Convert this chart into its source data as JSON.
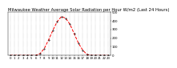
{
  "title": "Milwaukee Weather Average Solar Radiation per Hour W/m2 (Last 24 Hours)",
  "x_hours": [
    0,
    1,
    2,
    3,
    4,
    5,
    6,
    7,
    8,
    9,
    10,
    11,
    12,
    13,
    14,
    15,
    16,
    17,
    18,
    19,
    20,
    21,
    22,
    23
  ],
  "y_values": [
    0,
    0,
    0,
    0,
    0,
    0,
    0,
    20,
    80,
    180,
    290,
    390,
    450,
    430,
    360,
    250,
    140,
    60,
    10,
    0,
    0,
    0,
    0,
    0
  ],
  "line_color": "#ff0000",
  "line_style": "--",
  "marker": ".",
  "marker_color": "#000000",
  "bg_color": "#ffffff",
  "grid_color": "#888888",
  "ylim": [
    0,
    500
  ],
  "xlim": [
    -0.5,
    23.5
  ],
  "yticks": [
    0,
    100,
    200,
    300,
    400,
    500
  ],
  "title_fontsize": 3.8,
  "tick_fontsize": 2.8,
  "linewidth": 0.7,
  "markersize": 0.8
}
